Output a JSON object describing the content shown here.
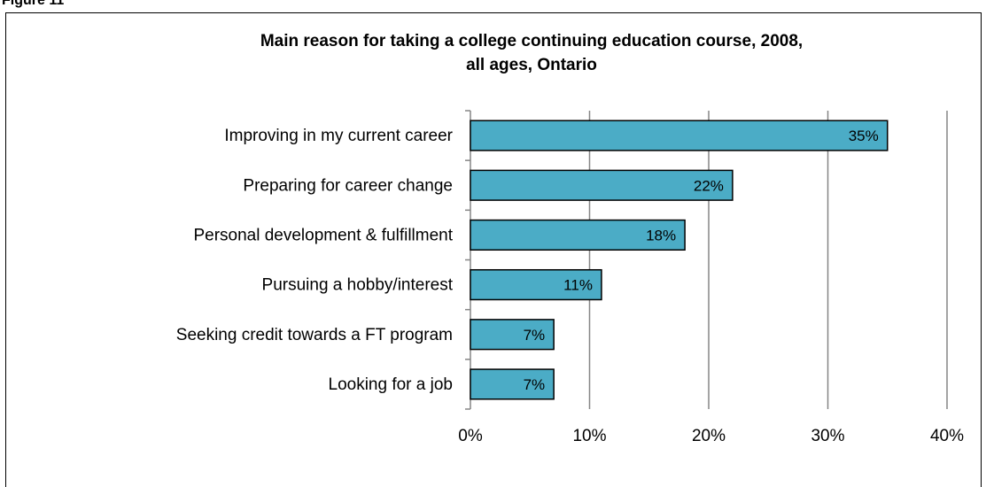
{
  "figure_label": "Figure 11",
  "chart_data": {
    "type": "bar",
    "orientation": "horizontal",
    "title": "Main reason for taking a college continuing education course, 2008, all ages, Ontario",
    "title_lines": [
      "Main reason for taking a college continuing education course, 2008,",
      "all ages, Ontario"
    ],
    "categories": [
      "Improving in my current career",
      "Preparing for career change",
      "Personal development & fulfillment",
      "Pursuing a hobby/interest",
      "Seeking credit towards a FT program",
      "Looking for a job"
    ],
    "values": [
      35,
      22,
      18,
      11,
      7,
      7
    ],
    "data_labels": [
      "35%",
      "22%",
      "18%",
      "11%",
      "7%",
      "7%"
    ],
    "xlim": [
      0,
      40
    ],
    "xticks": [
      0,
      10,
      20,
      30,
      40
    ],
    "xtick_labels": [
      "0%",
      "10%",
      "20%",
      "30%",
      "40%"
    ],
    "xlabel": "",
    "ylabel": "",
    "grid": "vertical",
    "legend": "none",
    "colors": {
      "bar_fill": "#4BACC6",
      "bar_stroke": "#000000",
      "grid": "#868686",
      "text": "#000000"
    }
  }
}
